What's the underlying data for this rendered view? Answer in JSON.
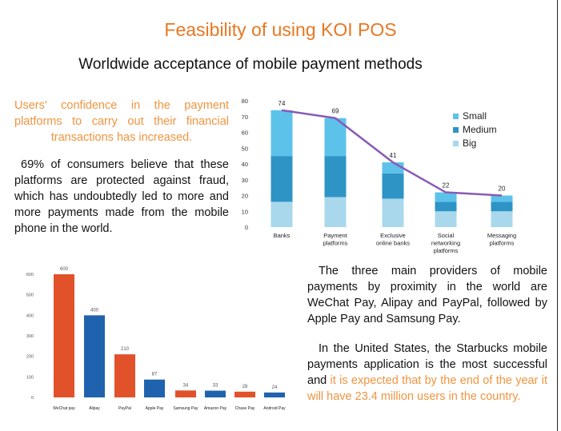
{
  "header": {
    "title": "Feasibility of using KOI POS",
    "subtitle": "Worldwide acceptance of mobile payment methods"
  },
  "text": {
    "para1": "Users' confidence in the payment platforms to carry out their financial transactions has increased.",
    "para2": "69% of consumers believe that these platforms are protected against fraud, which has undoubtedly led to more and more payments made from the mobile phone in the world.",
    "para3": "The three main providers of mobile payments by proximity in the world are WeChat Pay, Alipay and PayPal, followed by Apple Pay and Samsung Pay.",
    "para4_a": "In the United States, the Starbucks mobile payments application is the most successful and ",
    "para4_b": "it is expected that by the end of the year it will have 23.4 million users in the country."
  },
  "chart_data": [
    {
      "type": "bar",
      "stacked": true,
      "categories": [
        "Banks",
        "Payment platforms",
        "Exclusive online banks",
        "Social networking platforms",
        "Messaging platforms"
      ],
      "series": [
        {
          "name": "Big",
          "values": [
            16,
            19,
            18,
            10,
            10
          ],
          "color": "#A9D8EC"
        },
        {
          "name": "Medium",
          "values": [
            29,
            26,
            16,
            6,
            6
          ],
          "color": "#2E94C6"
        },
        {
          "name": "Small",
          "values": [
            29,
            24,
            7,
            6,
            4
          ],
          "color": "#5DC2EA"
        }
      ],
      "totals": [
        74,
        69,
        41,
        22,
        20
      ],
      "line": {
        "values": [
          74,
          69,
          41,
          22,
          20
        ],
        "color": "#8A5BB5"
      },
      "yticks": [
        0,
        10,
        20,
        30,
        40,
        50,
        60,
        70,
        80
      ],
      "ylim": [
        0,
        80
      ],
      "legend": [
        "Small",
        "Medium",
        "Big"
      ],
      "legend_position": "top-right",
      "grid": false
    },
    {
      "type": "bar",
      "categories": [
        "WeChat pay",
        "Alipay",
        "PayPal",
        "Apple Pay",
        "Samsung Pay",
        "Amazon Pay",
        "Chase Pay",
        "Android Pay"
      ],
      "values": [
        600,
        400,
        210,
        87,
        34,
        33,
        28,
        24
      ],
      "colors": [
        "#E2522A",
        "#1F63AE",
        "#E2522A",
        "#1F63AE",
        "#E2522A",
        "#1F63AE",
        "#E2522A",
        "#1F63AE"
      ],
      "yticks": [
        0,
        100,
        200,
        300,
        400,
        500,
        600
      ],
      "ylim": [
        0,
        640
      ],
      "grid": false
    }
  ]
}
